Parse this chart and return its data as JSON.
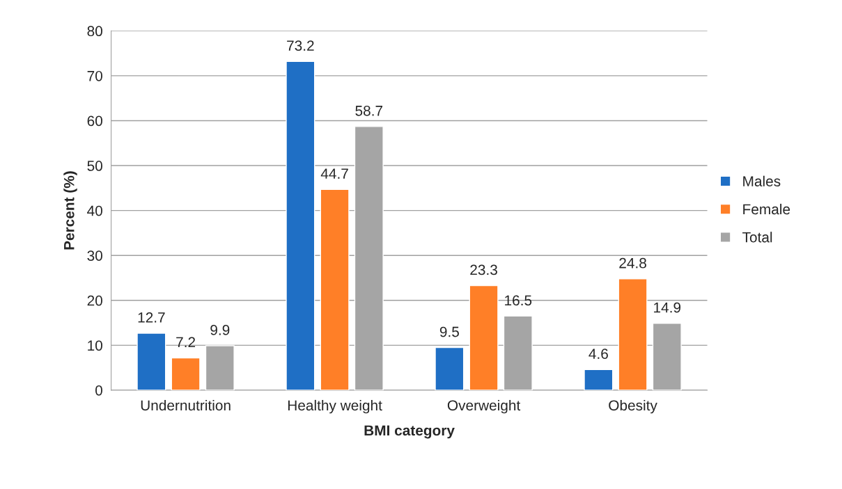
{
  "chart_data": {
    "type": "bar",
    "xlabel": "BMI category",
    "ylabel": "Percent (%)",
    "categories": [
      "Undernutrition",
      "Healthy weight",
      "Overweight",
      "Obesity"
    ],
    "series": [
      {
        "name": "Males",
        "color": "#1f6fc5",
        "values": [
          12.7,
          73.2,
          9.5,
          4.6
        ]
      },
      {
        "name": "Female",
        "color": "#ff7f27",
        "values": [
          7.2,
          44.7,
          23.3,
          24.8
        ]
      },
      {
        "name": "Total",
        "color": "#a5a5a5",
        "values": [
          9.9,
          58.7,
          16.5,
          14.9
        ]
      }
    ],
    "ylim": [
      0,
      80
    ],
    "yticks": [
      0,
      10,
      20,
      30,
      40,
      50,
      60,
      70,
      80
    ],
    "grid": "y",
    "legend": "right",
    "data_labels": true
  }
}
